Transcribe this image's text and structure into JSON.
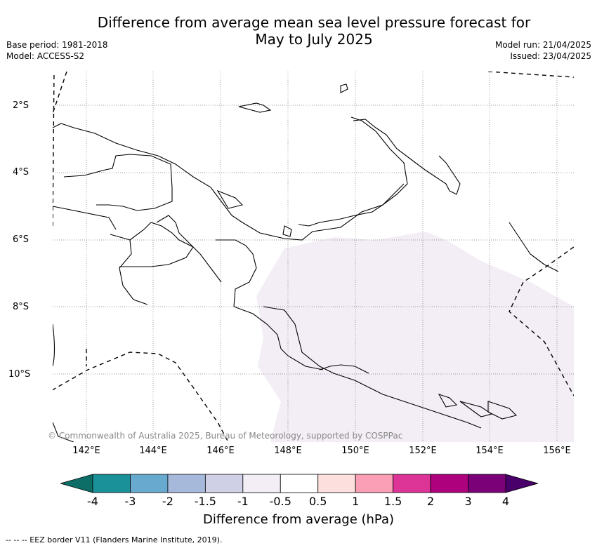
{
  "title_line1": "Difference from average mean sea level pressure forecast for",
  "title_line2": "May to July 2025",
  "meta_left": {
    "base_period": "Base period: 1981-2018",
    "model": "Model: ACCESS-S2"
  },
  "meta_right": {
    "model_run": "Model run: 21/04/2025",
    "issued": "Issued: 23/04/2025"
  },
  "map": {
    "lat_labels": [
      "2°S",
      "4°S",
      "6°S",
      "8°S",
      "10°S"
    ],
    "lon_labels": [
      "142°E",
      "144°E",
      "146°E",
      "148°E",
      "150°E",
      "152°E",
      "154°E",
      "156°E"
    ],
    "copyright": "© Commonwealth of Australia 2025, Bureau of Meteorology, supported by COSPPac",
    "shaded_anomaly_class": "-1 to -0.5",
    "shaded_color": "#f3edf5"
  },
  "colorbar": {
    "title": "Difference from average (hPa)",
    "ticks": [
      "-4",
      "-3",
      "-2",
      "-1.5",
      "-1",
      "-0.5",
      "0.5",
      "1",
      "1.5",
      "2",
      "3",
      "4"
    ],
    "colors": [
      "#0d6e68",
      "#1a9098",
      "#67a9cf",
      "#a6b9da",
      "#cfd0e6",
      "#f3edf5",
      "#ffffff",
      "#fde0dd",
      "#fa9fb5",
      "#dd3497",
      "#ae017e",
      "#7a0177",
      "#49006a"
    ]
  },
  "footnote": "--  --  -- EEZ border V11 (Flanders Marine Institute, 2019)."
}
